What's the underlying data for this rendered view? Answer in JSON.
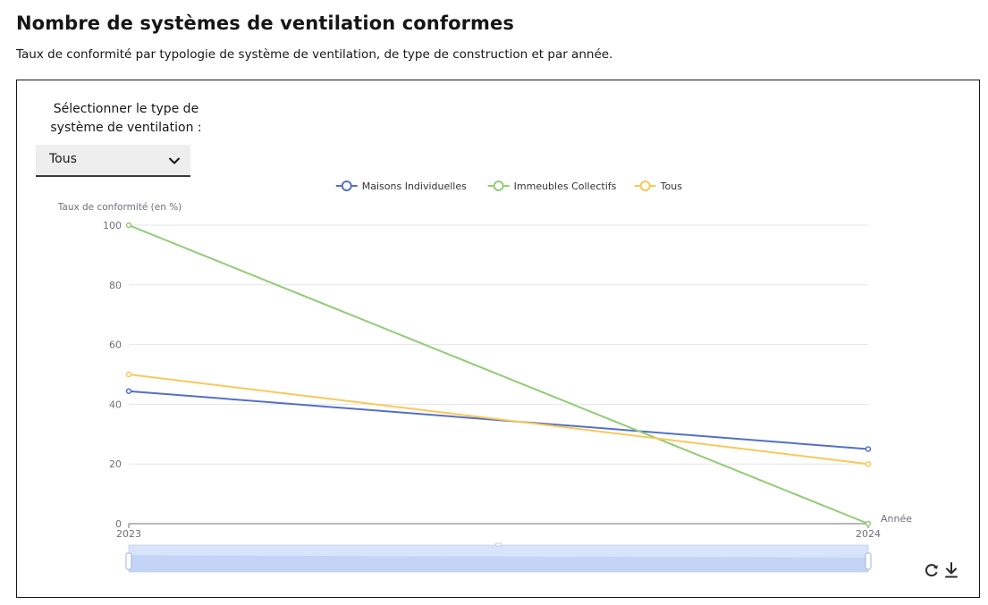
{
  "header": {
    "title": "Nombre de systèmes de ventilation conformes",
    "subtitle": "Taux de conformité par typologie de système de ventilation, de type de construction et par année."
  },
  "filter": {
    "label": "Sélectionner le type de système de ventilation :",
    "selected": "Tous"
  },
  "toolbox": {
    "restore_icon": "refresh-icon",
    "download_icon": "download-icon"
  },
  "chart_data": {
    "type": "line",
    "x": [
      "2023",
      "2024"
    ],
    "xlabel": "Année",
    "ylabel": "Taux de conformité (en %)",
    "ylim": [
      0,
      100
    ],
    "yticks": [
      0,
      20,
      40,
      60,
      80,
      100
    ],
    "grid": true,
    "legend_position": "top-center",
    "has_datazoom_slider": true,
    "series": [
      {
        "name": "Maisons Individuelles",
        "color": "#5470c6",
        "values": [
          44.4,
          25
        ]
      },
      {
        "name": "Immeubles Collectifs",
        "color": "#91cc75",
        "values": [
          100,
          0
        ]
      },
      {
        "name": "Tous",
        "color": "#fac858",
        "values": [
          50,
          20
        ]
      }
    ]
  }
}
